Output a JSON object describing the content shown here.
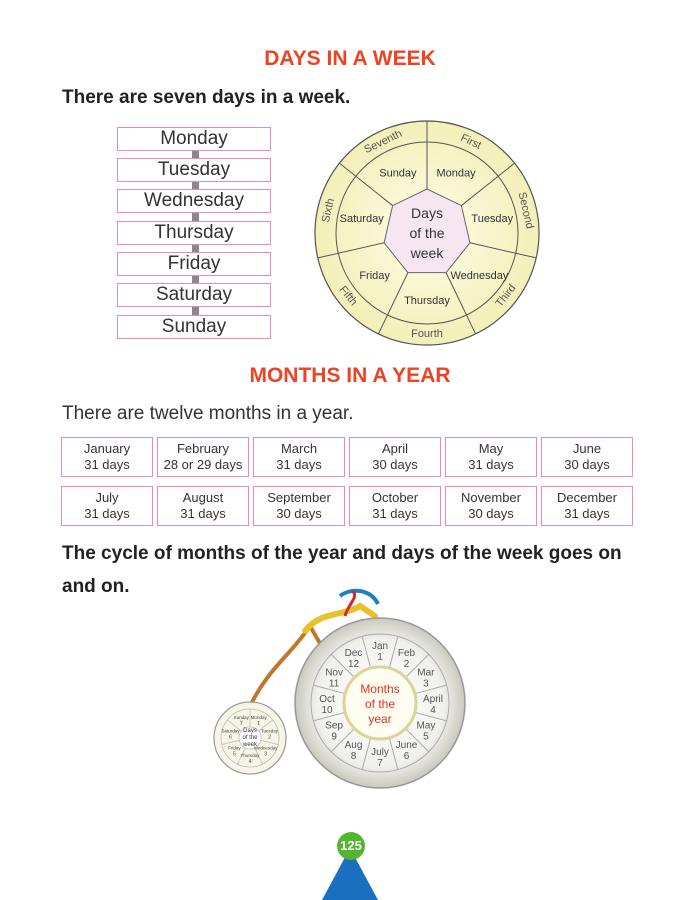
{
  "title_days": "DAYS IN A WEEK",
  "days_intro": "There are seven days in a week.",
  "days": [
    "Monday",
    "Tuesday",
    "Wednesday",
    "Thursday",
    "Friday",
    "Saturday",
    "Sunday"
  ],
  "wheel": {
    "center": [
      "Days",
      "of the",
      "week"
    ],
    "segments": [
      {
        "ordinal": "First",
        "day": "Monday"
      },
      {
        "ordinal": "Second",
        "day": "Tuesday"
      },
      {
        "ordinal": "Third",
        "day": "Wednesday"
      },
      {
        "ordinal": "Fourth",
        "day": "Thursday"
      },
      {
        "ordinal": "Fifth",
        "day": "Friday"
      },
      {
        "ordinal": "Sixth",
        "day": "Saturday"
      },
      {
        "ordinal": "Seventh",
        "day": "Sunday"
      }
    ]
  },
  "title_months": "MONTHS IN A YEAR",
  "months_intro": "There are twelve months in a year.",
  "months": [
    {
      "name": "January",
      "days": "31 days"
    },
    {
      "name": "February",
      "days": "28 or 29 days"
    },
    {
      "name": "March",
      "days": "31 days"
    },
    {
      "name": "April",
      "days": "30 days"
    },
    {
      "name": "May",
      "days": "31 days"
    },
    {
      "name": "June",
      "days": "30 days"
    },
    {
      "name": "July",
      "days": "31 days"
    },
    {
      "name": "August",
      "days": "31 days"
    },
    {
      "name": "September",
      "days": "30 days"
    },
    {
      "name": "October",
      "days": "31 days"
    },
    {
      "name": "November",
      "days": "30 days"
    },
    {
      "name": "December",
      "days": "31 days"
    }
  ],
  "cycle_text_1": "The cycle of months of the year and days of the week goes on",
  "cycle_text_2": "and on.",
  "bicycle": {
    "big_center": [
      "Months",
      "of the",
      "year"
    ],
    "big_segments": [
      {
        "m": "Jan",
        "n": "1"
      },
      {
        "m": "Feb",
        "n": "2"
      },
      {
        "m": "Mar",
        "n": "3"
      },
      {
        "m": "April",
        "n": "4"
      },
      {
        "m": "May",
        "n": "5"
      },
      {
        "m": "June",
        "n": "6"
      },
      {
        "m": "July",
        "n": "7"
      },
      {
        "m": "Aug",
        "n": "8"
      },
      {
        "m": "Sep",
        "n": "9"
      },
      {
        "m": "Oct",
        "n": "10"
      },
      {
        "m": "Nov",
        "n": "11"
      },
      {
        "m": "Dec",
        "n": "12"
      }
    ],
    "small_center": [
      "Days",
      "of the",
      "week"
    ],
    "small_segments": [
      {
        "d": "Monday",
        "n": "1"
      },
      {
        "d": "Tuesday",
        "n": "2"
      },
      {
        "d": "Wednesday",
        "n": "3"
      },
      {
        "d": "Thursday",
        "n": "4"
      },
      {
        "d": "Friday",
        "n": "5"
      },
      {
        "d": "Saturday",
        "n": "6"
      },
      {
        "d": "Sunday",
        "n": "7"
      }
    ]
  },
  "page_number": "125",
  "colors": {
    "heading": "#ee4323",
    "box_border": "#ee88bb",
    "page_badge": "#55b532",
    "page_mount": "#1a6fc1"
  }
}
